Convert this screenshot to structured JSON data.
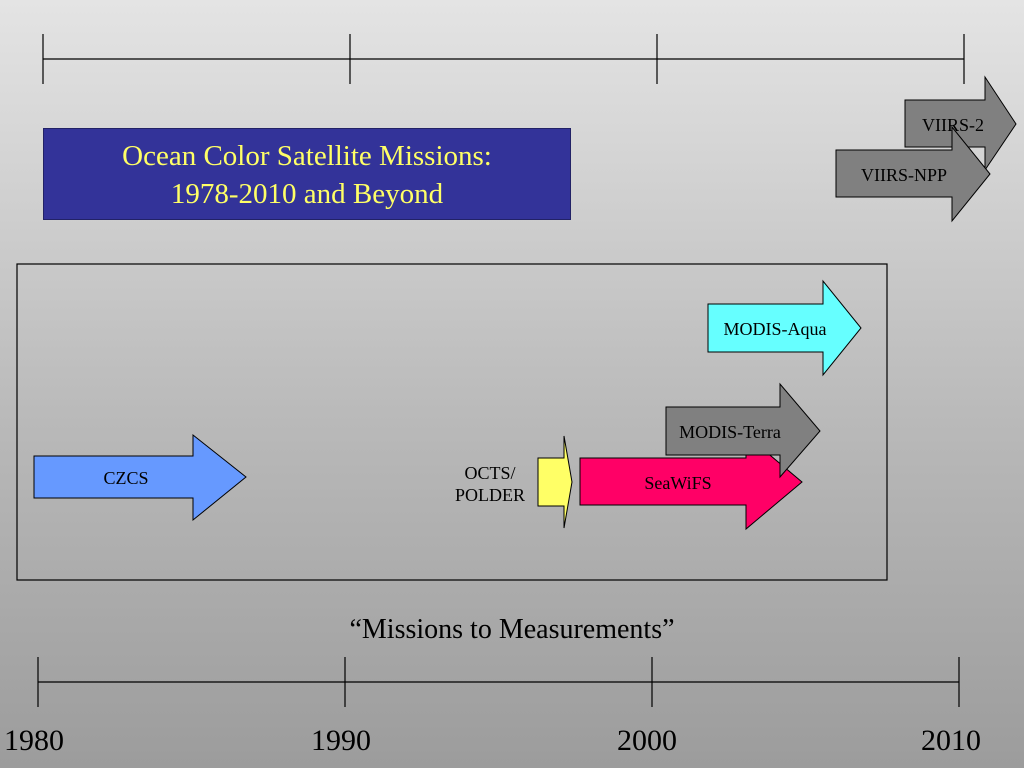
{
  "title": {
    "line1": "Ocean Color Satellite Missions:",
    "line2": "1978-2010 and Beyond"
  },
  "tagline": "“Missions to Measurements”",
  "axis": {
    "years": [
      "1980",
      "1990",
      "2000",
      "2010"
    ]
  },
  "missions": {
    "czcs": "CZCS",
    "octs_polder": {
      "line1": "OCTS/",
      "line2": "POLDER"
    },
    "seawifs": "SeaWiFS",
    "modis_terra": "MODIS-Terra",
    "modis_aqua": "MODIS-Aqua",
    "viirs_npp": "VIIRS-NPP",
    "viirs_2": "VIIRS-2"
  },
  "colors": {
    "title_bg": "#333399",
    "title_text": "#ffff66",
    "czcs": "#6699ff",
    "octs_polder": "#ffff66",
    "seawifs": "#ff0066",
    "modis_terra": "#808080",
    "modis_aqua": "#66ffff",
    "viirs": "#808080"
  }
}
